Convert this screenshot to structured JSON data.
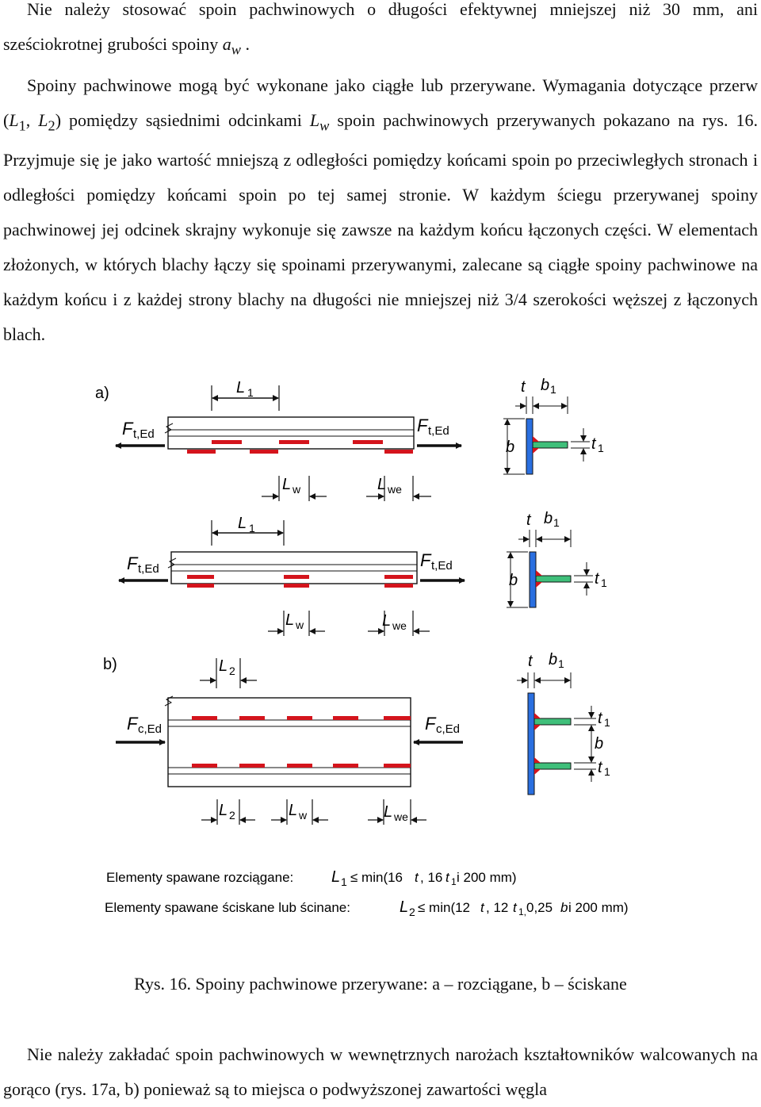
{
  "paragraph1": {
    "text": "Nie należy stosować spoin pachwinowych o długości efektywnej mniejszej niż 30 mm, ani sześciokrotnej grubości spoiny",
    "symbol": "a",
    "subscript": "w",
    "tail": "."
  },
  "paragraph2": {
    "part1": "Spoiny pachwinowe mogą być wykonane jako ciągłe lub przerywane. Wymagania dotyczące przerw (",
    "sym1": "L",
    "sub1": "1",
    "sep": ",",
    "sym2": "L",
    "sub2": "2",
    "part2": ") pomiędzy sąsiednimi odcinkami",
    "sym3": "L",
    "sub3": "w",
    "part3": "spoin pachwinowych przerywanych pokazano na rys. 16. Przyjmuje się je jako wartość mniejszą z odległości pomiędzy końcami spoin po przeciwległych stronach i odległości pomiędzy końcami spoin po tej samej stronie. W każdym ściegu przerywanej spoiny pachwinowej jej odcinek skrajny wykonuje się zawsze na każdym końcu łączonych części. W elementach złożonych, w których blachy łączy się spoinami przerywanymi, zalecane są ciągłe spoiny pachwinowe na każdym końcu i z każdej strony blachy na długości nie mniejszej niż 3/4 szerokości węższej z łączonych blach."
  },
  "figure": {
    "label_a": "a)",
    "label_b": "b)",
    "force_tension": {
      "F": "F",
      "sub": "t,Ed"
    },
    "force_compression": {
      "F": "F",
      "sub": "c,Ed"
    },
    "dims": {
      "L1": {
        "L": "L",
        "sub": "1"
      },
      "L2": {
        "L": "L",
        "sub": "2"
      },
      "Lw": {
        "L": "L",
        "sub": "w"
      },
      "Lwe": {
        "L": "L",
        "sub": "we"
      },
      "t": "t",
      "b": "b",
      "b1": {
        "b": "b",
        "sub": "1"
      },
      "t1": {
        "t": "t",
        "sub": "1"
      }
    },
    "formula1": {
      "label": "Elementy spawane rozciągane:",
      "L": "L",
      "Lsub": "1",
      "expr": "≤ min(16",
      "t": "t",
      "mid": ", 16",
      "t2": "t",
      "t2sub": "1",
      "end": " i 200 mm)"
    },
    "formula2": {
      "label": "Elementy spawane ściskane lub ścinane:",
      "L": "L",
      "Lsub": "2",
      "expr": "≤ min(12",
      "t": "t",
      "mid": ", 12",
      "t2": "t",
      "t2sub": "1,",
      "mid2": " 0,25",
      "b": "b",
      "end": " i 200 mm)"
    }
  },
  "caption": "Rys. 16. Spoiny pachwinowe przerywane: a – rozciągane, b – ściskane",
  "paragraph3": "Nie należy zakładać spoin pachwinowych w wewnętrznych narożach kształtowników walcowanych na gorąco (rys. 17a, b) ponieważ są to miejsca o podwyższonej zawartości węgla",
  "colors": {
    "weld": "#d4141c",
    "web_plate": "#2a6fe0",
    "flange_plate": "#3fbf7a",
    "line": "#111111"
  }
}
